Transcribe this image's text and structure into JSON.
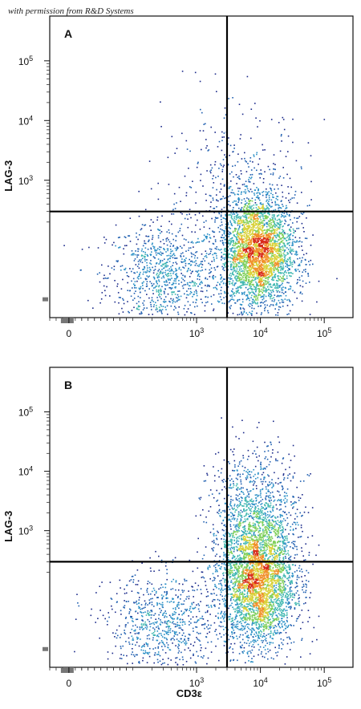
{
  "credit": "with permission from R&D Systems",
  "x_label": "CD3ε",
  "y_label": "LAG-3",
  "chart_data": [
    {
      "type": "scatter",
      "panel": "A",
      "x_scale": "biexponential",
      "y_scale": "biexponential",
      "x_ticks": [
        {
          "v": 0,
          "b": "0",
          "e": ""
        },
        {
          "v": 1000,
          "b": "10",
          "e": "3"
        },
        {
          "v": 10000,
          "b": "10",
          "e": "4"
        },
        {
          "v": 100000,
          "b": "10",
          "e": "5"
        }
      ],
      "y_ticks": [
        {
          "v": 1000,
          "b": "10",
          "e": "3"
        },
        {
          "v": 10000,
          "b": "10",
          "e": "4"
        },
        {
          "v": 100000,
          "b": "10",
          "e": "5"
        }
      ],
      "quadrant_gate": {
        "x": 3000,
        "y": 300
      },
      "populations": [
        {
          "x": 300,
          "y": 40,
          "spread_x": 0.28,
          "spread_y": 0.28,
          "count": 900
        },
        {
          "x": 9000,
          "y": 80,
          "spread_x": 0.18,
          "spread_y": 0.3,
          "count": 3200
        },
        {
          "x": 4000,
          "y": 600,
          "spread_x": 0.35,
          "spread_y": 0.45,
          "count": 420
        }
      ]
    },
    {
      "type": "scatter",
      "panel": "B",
      "x_scale": "biexponential",
      "y_scale": "biexponential",
      "x_ticks": [
        {
          "v": 0,
          "b": "0",
          "e": ""
        },
        {
          "v": 1000,
          "b": "10",
          "e": "3"
        },
        {
          "v": 10000,
          "b": "10",
          "e": "4"
        },
        {
          "v": 100000,
          "b": "10",
          "e": "5"
        }
      ],
      "y_ticks": [
        {
          "v": 1000,
          "b": "10",
          "e": "3"
        },
        {
          "v": 10000,
          "b": "10",
          "e": "4"
        },
        {
          "v": 100000,
          "b": "10",
          "e": "5"
        }
      ],
      "quadrant_gate": {
        "x": 3000,
        "y": 300
      },
      "populations": [
        {
          "x": 300,
          "y": 40,
          "spread_x": 0.28,
          "spread_y": 0.28,
          "count": 800
        },
        {
          "x": 9000,
          "y": 130,
          "spread_x": 0.18,
          "spread_y": 0.34,
          "count": 3000
        },
        {
          "x": 8000,
          "y": 1200,
          "spread_x": 0.22,
          "spread_y": 0.4,
          "count": 1300
        }
      ]
    }
  ]
}
